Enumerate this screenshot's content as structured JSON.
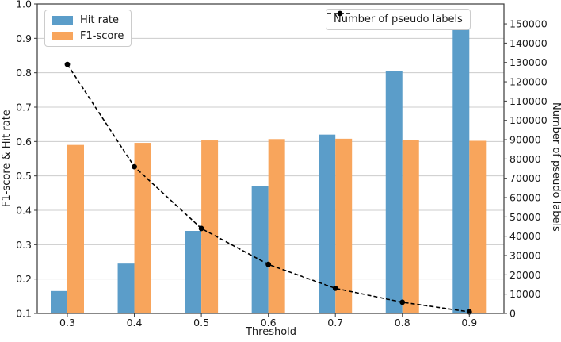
{
  "chart_data": {
    "type": "bar",
    "title": "",
    "categories": [
      "0.3",
      "0.4",
      "0.5",
      "0.6",
      "0.7",
      "0.8",
      "0.9"
    ],
    "xlabel": "Threshold",
    "ylabel_left": "F1-score & Hit rate",
    "ylabel_right": "Number of pseudo labels",
    "ylim_left": [
      0.1,
      1.0
    ],
    "yticks_left": [
      "0.1",
      "0.2",
      "0.3",
      "0.4",
      "0.5",
      "0.6",
      "0.7",
      "0.8",
      "0.9",
      "1.0"
    ],
    "ylim_right": [
      0,
      160300
    ],
    "yticks_right": [
      0,
      10000,
      20000,
      30000,
      40000,
      50000,
      60000,
      70000,
      80000,
      90000,
      100000,
      110000,
      120000,
      130000,
      140000,
      150000
    ],
    "grid": true,
    "grid_color": "#cccccc",
    "spine_color": "#3a3a3a",
    "legend_positions": [
      "upper left",
      "upper right"
    ],
    "series": [
      {
        "name": "Hit rate",
        "type": "bar",
        "axis": "left",
        "color": "#5b9dc9",
        "values": [
          0.165,
          0.245,
          0.34,
          0.47,
          0.62,
          0.805,
          0.925
        ]
      },
      {
        "name": "F1-score",
        "type": "bar",
        "axis": "left",
        "color": "#f8a55c",
        "values": [
          0.59,
          0.596,
          0.603,
          0.607,
          0.608,
          0.605,
          0.602
        ]
      },
      {
        "name": "Number of pseudo labels",
        "type": "line",
        "axis": "right",
        "color": "#000000",
        "linestyle": "dashed",
        "marker": "circle",
        "values": [
          129000,
          76000,
          44000,
          25400,
          13000,
          5800,
          800
        ]
      }
    ]
  }
}
